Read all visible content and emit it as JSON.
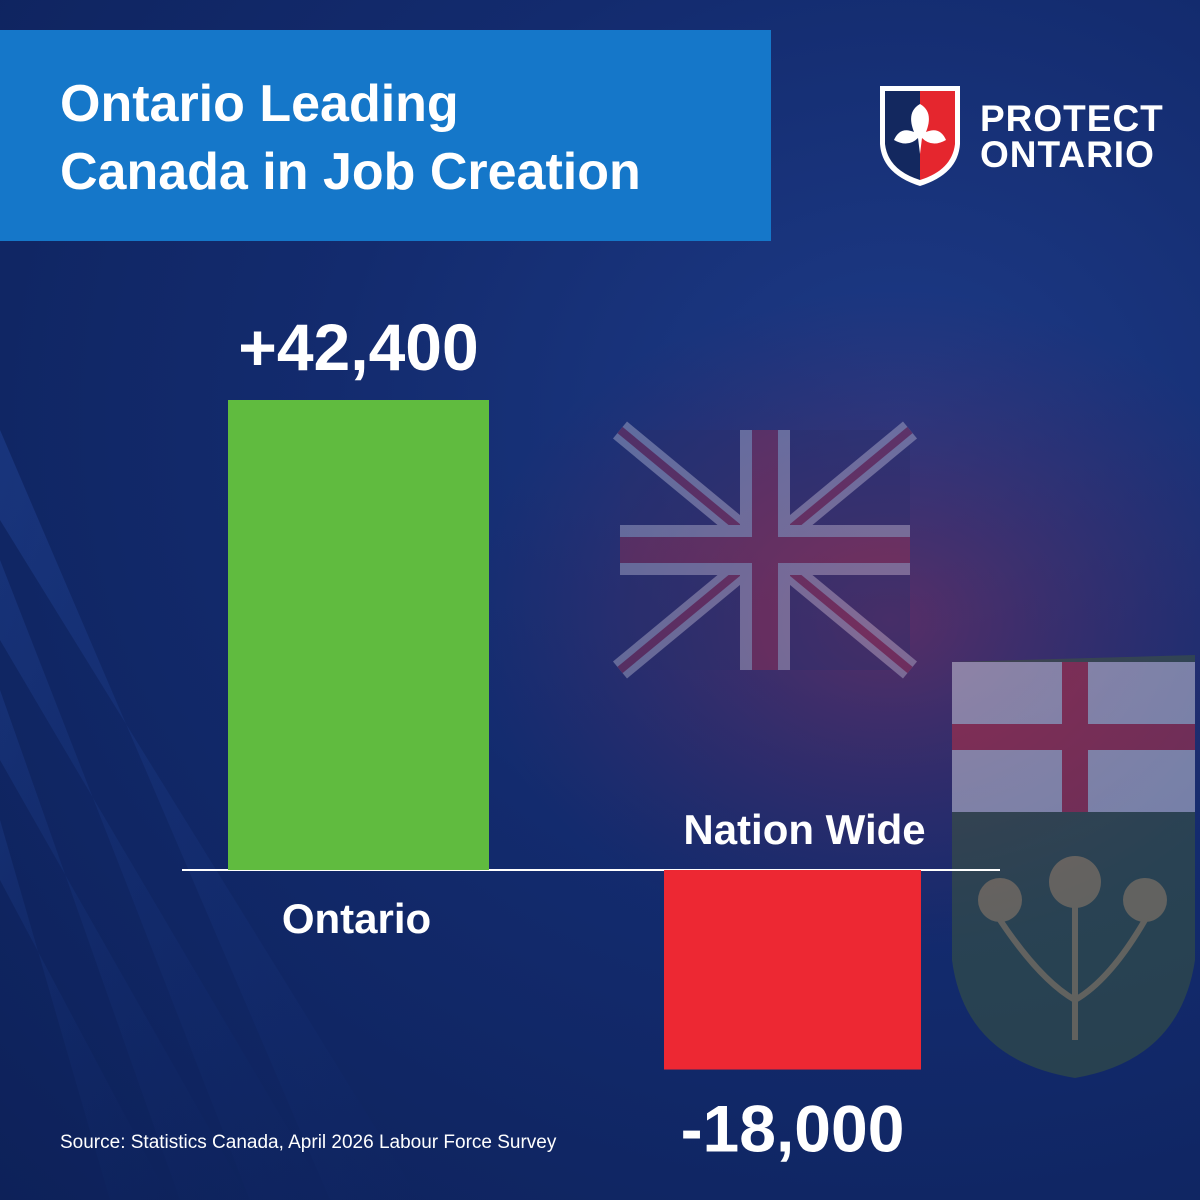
{
  "header": {
    "title_line1": "Ontario Leading",
    "title_line2": "Canada in Job Creation"
  },
  "brand": {
    "line1": "PROTECT",
    "line2": "ONTARIO",
    "shield_left_color": "#13285f",
    "shield_right_color": "#e5262e"
  },
  "chart_data": {
    "type": "bar",
    "categories": [
      "Ontario",
      "Nation Wide"
    ],
    "values": [
      42400,
      -18000
    ],
    "data_labels": [
      "+42,400",
      "-18,000"
    ],
    "colors": [
      "#60bb3f",
      "#ed2833"
    ],
    "title": "Ontario Leading Canada in Job Creation",
    "xlabel": "",
    "ylabel": "",
    "ylim": [
      -18000,
      42400
    ],
    "grid": false,
    "legend": "none"
  },
  "footer": {
    "source": "Source: Statistics Canada, April 2026 Labour Force Survey"
  },
  "colors": {
    "background": "#132b6e",
    "title_box": "#1577c9",
    "text": "#ffffff"
  }
}
